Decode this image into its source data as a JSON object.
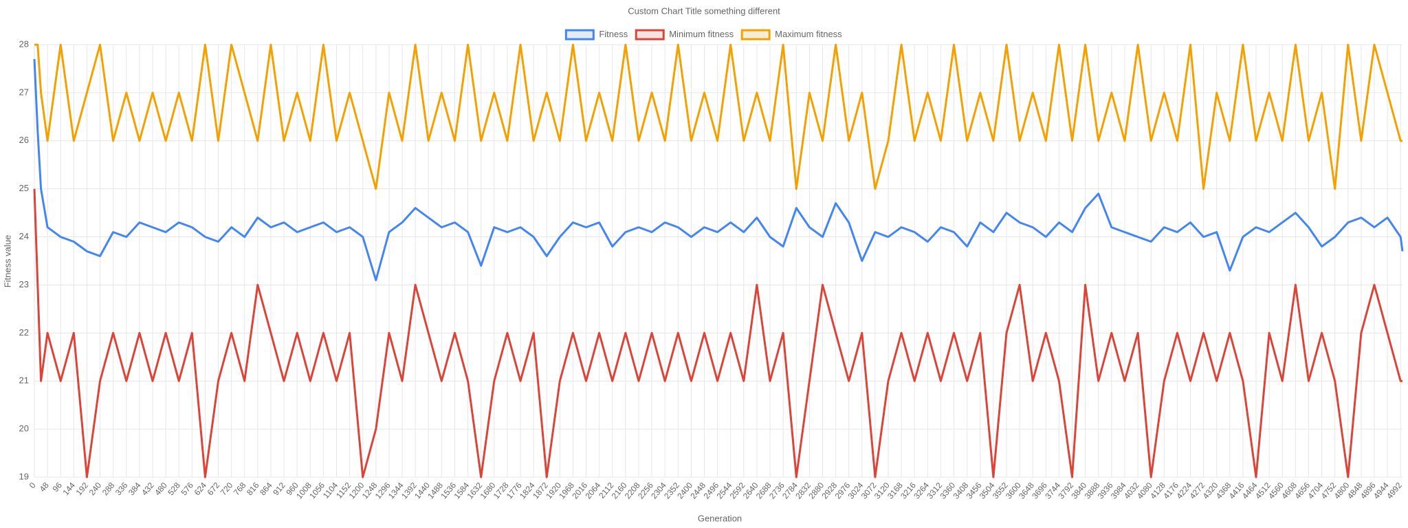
{
  "chart_data": {
    "type": "line",
    "title": "Custom Chart Title something different",
    "x_label": "Generation",
    "y_label": "Fitness value",
    "x": [
      0,
      12,
      24,
      48,
      96,
      144,
      192,
      240,
      288,
      336,
      384,
      432,
      480,
      528,
      576,
      624,
      672,
      720,
      768,
      816,
      864,
      912,
      960,
      1008,
      1056,
      1104,
      1152,
      1200,
      1248,
      1296,
      1344,
      1392,
      1440,
      1488,
      1536,
      1584,
      1632,
      1680,
      1728,
      1776,
      1824,
      1872,
      1920,
      1968,
      2016,
      2064,
      2112,
      2160,
      2208,
      2256,
      2304,
      2352,
      2400,
      2448,
      2496,
      2544,
      2592,
      2640,
      2688,
      2736,
      2784,
      2832,
      2880,
      2928,
      2976,
      3024,
      3072,
      3120,
      3168,
      3216,
      3264,
      3312,
      3360,
      3408,
      3456,
      3504,
      3552,
      3600,
      3648,
      3696,
      3744,
      3792,
      3840,
      3888,
      3936,
      3984,
      4032,
      4080,
      4128,
      4176,
      4224,
      4272,
      4320,
      4368,
      4416,
      4464,
      4512,
      4560,
      4608,
      4656,
      4704,
      4752,
      4800,
      4848,
      4896,
      4944,
      4992,
      4999
    ],
    "series": [
      {
        "name": "Fitness",
        "color": "#4285f4",
        "fill": "#e3ebf7",
        "values": [
          27.7,
          26.2,
          25.0,
          24.2,
          24.0,
          23.9,
          23.7,
          23.6,
          24.1,
          24.0,
          24.3,
          24.2,
          24.1,
          24.3,
          24.2,
          24.0,
          23.9,
          24.2,
          24.0,
          24.4,
          24.2,
          24.3,
          24.1,
          24.2,
          24.3,
          24.1,
          24.2,
          24.0,
          23.1,
          24.1,
          24.3,
          24.6,
          24.4,
          24.2,
          24.3,
          24.1,
          23.4,
          24.2,
          24.1,
          24.2,
          24.0,
          23.6,
          24.0,
          24.3,
          24.2,
          24.3,
          23.8,
          24.1,
          24.2,
          24.1,
          24.3,
          24.2,
          24.0,
          24.2,
          24.1,
          24.3,
          24.1,
          24.4,
          24.0,
          23.8,
          24.6,
          24.2,
          24.0,
          24.7,
          24.3,
          23.5,
          24.1,
          24.0,
          24.2,
          24.1,
          23.9,
          24.2,
          24.1,
          23.8,
          24.3,
          24.1,
          24.5,
          24.3,
          24.2,
          24.0,
          24.3,
          24.1,
          24.6,
          24.9,
          24.2,
          24.1,
          24.0,
          23.9,
          24.2,
          24.1,
          24.3,
          24.0,
          24.1,
          23.3,
          24.0,
          24.2,
          24.1,
          24.3,
          24.5,
          24.2,
          23.8,
          24.0,
          24.3,
          24.4,
          24.2,
          24.4,
          24.0,
          23.7
        ]
      },
      {
        "name": "Minimum fitness",
        "color": "#db4437",
        "fill": "#f5e4e2",
        "values": [
          25,
          23,
          21,
          22,
          21,
          22,
          19,
          21,
          22,
          21,
          22,
          21,
          22,
          21,
          22,
          19,
          21,
          22,
          21,
          23,
          22,
          21,
          22,
          21,
          22,
          21,
          22,
          19,
          20,
          22,
          21,
          23,
          22,
          21,
          22,
          21,
          19,
          21,
          22,
          21,
          22,
          19,
          21,
          22,
          21,
          22,
          21,
          22,
          21,
          22,
          21,
          22,
          21,
          22,
          21,
          22,
          21,
          23,
          21,
          22,
          19,
          21,
          23,
          22,
          21,
          22,
          19,
          21,
          22,
          21,
          22,
          21,
          22,
          21,
          22,
          19,
          22,
          23,
          21,
          22,
          21,
          19,
          23,
          21,
          22,
          21,
          22,
          19,
          21,
          22,
          21,
          22,
          21,
          22,
          21,
          19,
          22,
          21,
          23,
          21,
          22,
          21,
          19,
          22,
          23,
          22,
          21,
          21
        ]
      },
      {
        "name": "Maximum fitness",
        "color": "#f4a100",
        "fill": "#f7ecd6",
        "values": [
          28,
          28,
          27,
          26,
          28,
          26,
          27,
          28,
          26,
          27,
          26,
          27,
          26,
          27,
          26,
          28,
          26,
          28,
          27,
          26,
          28,
          26,
          27,
          26,
          28,
          26,
          27,
          26,
          25,
          27,
          26,
          28,
          26,
          27,
          26,
          28,
          26,
          27,
          26,
          28,
          26,
          27,
          26,
          28,
          26,
          27,
          26,
          28,
          26,
          27,
          26,
          28,
          26,
          27,
          26,
          28,
          26,
          27,
          26,
          28,
          25,
          27,
          26,
          28,
          26,
          27,
          25,
          26,
          28,
          26,
          27,
          26,
          28,
          26,
          27,
          26,
          28,
          26,
          27,
          26,
          28,
          26,
          28,
          26,
          27,
          26,
          28,
          26,
          27,
          26,
          28,
          25,
          27,
          26,
          28,
          26,
          27,
          26,
          28,
          26,
          27,
          25,
          28,
          26,
          28,
          27,
          26,
          26
        ]
      }
    ],
    "xlim": [
      0,
      4999
    ],
    "xticks": [
      0,
      48,
      96,
      144,
      192,
      240,
      288,
      336,
      384,
      432,
      480,
      528,
      576,
      624,
      672,
      720,
      768,
      816,
      864,
      912,
      960,
      1008,
      1056,
      1104,
      1152,
      1200,
      1248,
      1296,
      1344,
      1392,
      1440,
      1488,
      1536,
      1584,
      1632,
      1680,
      1728,
      1776,
      1824,
      1872,
      1920,
      1968,
      2016,
      2064,
      2112,
      2160,
      2208,
      2256,
      2304,
      2352,
      2400,
      2448,
      2496,
      2544,
      2592,
      2640,
      2688,
      2736,
      2784,
      2832,
      2880,
      2928,
      2976,
      3024,
      3072,
      3120,
      3168,
      3216,
      3264,
      3312,
      3360,
      3408,
      3456,
      3504,
      3552,
      3600,
      3648,
      3696,
      3744,
      3792,
      3840,
      3888,
      3936,
      3984,
      4032,
      4080,
      4128,
      4176,
      4224,
      4272,
      4320,
      4368,
      4416,
      4464,
      4512,
      4560,
      4608,
      4656,
      4704,
      4752,
      4800,
      4848,
      4896,
      4944,
      4992
    ],
    "ylim": [
      19,
      28
    ],
    "yticks": [
      19,
      20,
      21,
      22,
      23,
      24,
      25,
      26,
      27,
      28
    ],
    "grid": true,
    "legend": "top"
  }
}
